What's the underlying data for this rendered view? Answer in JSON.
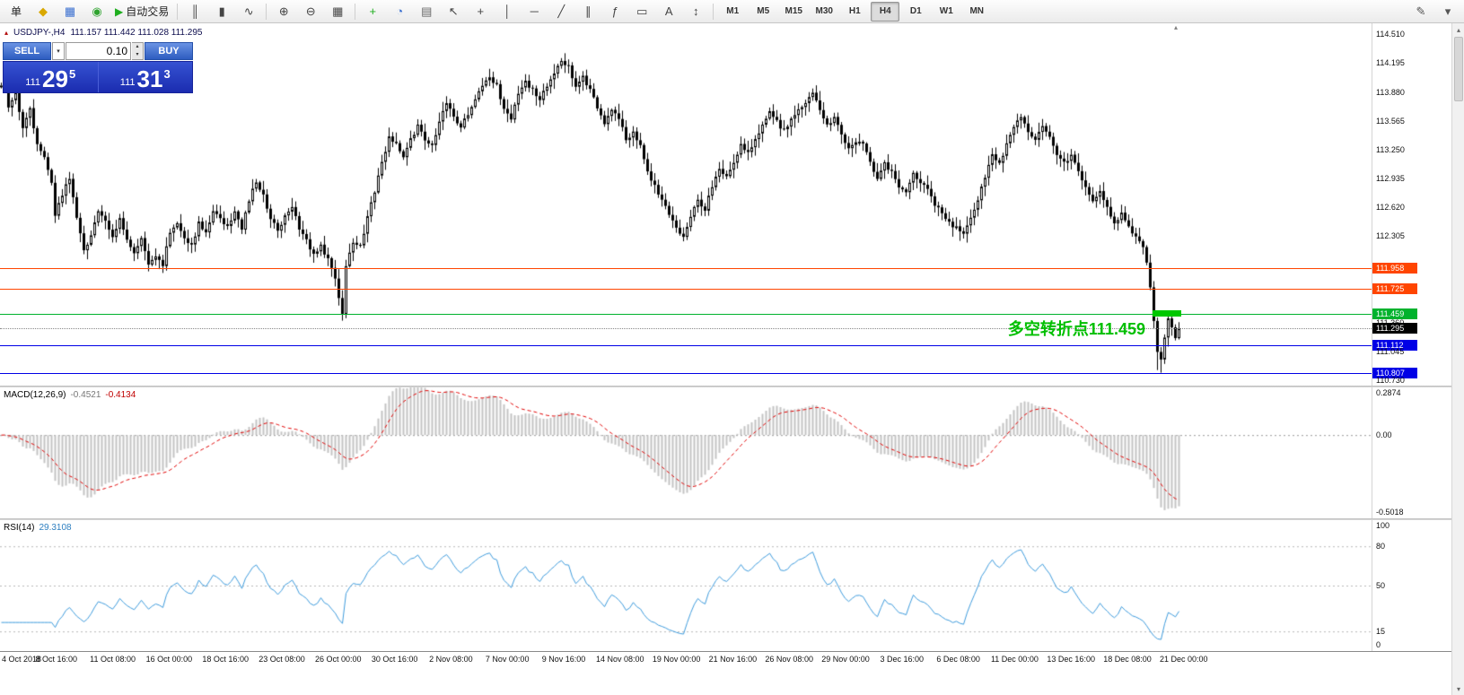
{
  "toolbar": {
    "menu_label": "单",
    "icons_left": [
      {
        "name": "new-order-icon",
        "glyph": "◆",
        "color": "#d9a800"
      },
      {
        "name": "market-watch-icon",
        "glyph": "▦",
        "color": "#3a6fd0"
      },
      {
        "name": "refresh-icon",
        "glyph": "◉",
        "color": "#2fa32f"
      }
    ],
    "autotrading": {
      "label": "自动交易",
      "icon_color": "#1fae1f"
    },
    "chart_type_icons": [
      {
        "name": "bar-chart-icon",
        "glyph": "║",
        "color": "#444"
      },
      {
        "name": "candlestick-icon",
        "glyph": "▮",
        "color": "#444"
      },
      {
        "name": "line-chart-icon",
        "glyph": "∿",
        "color": "#444"
      }
    ],
    "zoom_icons": [
      {
        "name": "zoom-in-icon",
        "glyph": "⊕",
        "color": "#444"
      },
      {
        "name": "zoom-out-icon",
        "glyph": "⊖",
        "color": "#444"
      },
      {
        "name": "grid-icon",
        "glyph": "▦",
        "color": "#444"
      }
    ],
    "tool_icons": [
      {
        "name": "indicators-add-icon",
        "glyph": "+",
        "color": "#1fae1f"
      },
      {
        "name": "period-icon",
        "glyph": "◔",
        "color": "#3a6fd0"
      },
      {
        "name": "template-icon",
        "glyph": "▤",
        "color": "#666"
      },
      {
        "name": "cursor-icon",
        "glyph": "↖",
        "color": "#444"
      },
      {
        "name": "crosshair-icon",
        "glyph": "+",
        "color": "#444"
      },
      {
        "name": "vline-icon",
        "glyph": "│",
        "color": "#444"
      },
      {
        "name": "hline-icon",
        "glyph": "─",
        "color": "#444"
      },
      {
        "name": "trendline-icon",
        "glyph": "╱",
        "color": "#444"
      },
      {
        "name": "channel-icon",
        "glyph": "∥",
        "color": "#444"
      },
      {
        "name": "fibonacci-icon",
        "glyph": "ƒ",
        "color": "#444"
      },
      {
        "name": "shapes-icon",
        "glyph": "▭",
        "color": "#444"
      },
      {
        "name": "text-icon",
        "glyph": "A",
        "color": "#444"
      },
      {
        "name": "arrows-icon",
        "glyph": "↕",
        "color": "#444"
      }
    ],
    "timeframes": [
      "M1",
      "M5",
      "M15",
      "M30",
      "H1",
      "H4",
      "D1",
      "W1",
      "MN"
    ],
    "active_timeframe": "H4",
    "right_icons": [
      {
        "name": "edit-icon",
        "glyph": "✎",
        "color": "#555"
      },
      {
        "name": "collapse-icon",
        "glyph": "▾",
        "color": "#555"
      }
    ]
  },
  "symbol_header": {
    "marker": "▴",
    "symbol": "USDJPY-,H4",
    "ohlc": "111.157 111.442 111.028 111.295"
  },
  "trade_panel": {
    "sell_label": "SELL",
    "buy_label": "BUY",
    "volume": "0.10",
    "sell_price_major": "111",
    "sell_price_big": "29",
    "sell_price_sup": "5",
    "buy_price_major": "111",
    "buy_price_big": "31",
    "buy_price_sup": "3"
  },
  "annotation": {
    "text": "多空转折点111.459",
    "color": "#00bf00"
  },
  "levels": [
    {
      "price": 111.958,
      "label": "111.958",
      "color": "#ff4500"
    },
    {
      "price": 111.725,
      "label": "111.725",
      "color": "#ff4500"
    },
    {
      "price": 111.459,
      "label": "111.459",
      "color": "#00b22d"
    },
    {
      "price": 111.112,
      "label": "111.112",
      "color": "#0000e6"
    },
    {
      "price": 110.807,
      "label": "110.807",
      "color": "#0000e6"
    }
  ],
  "current_price": {
    "value": 111.295,
    "label": "111.295",
    "color": "#000000"
  },
  "price_axis_ticks": [
    "114.510",
    "114.195",
    "113.880",
    "113.565",
    "113.250",
    "112.935",
    "112.620",
    "112.305",
    "111.360",
    "111.045",
    "110.730"
  ],
  "macd_pane": {
    "name": "MACD(12,26,9)",
    "value1": "-0.4521",
    "value2": "-0.4134",
    "axis_top": "0.2874",
    "axis_zero": "0.00",
    "axis_bottom": "-0.5018"
  },
  "rsi_pane": {
    "name": "RSI(14)",
    "value": "29.3108",
    "axis": [
      "100",
      "80",
      "50",
      "15",
      "0"
    ],
    "levels": [
      80,
      50,
      15
    ]
  },
  "time_axis": [
    "4 Oct 2018",
    "8 Oct 16:00",
    "11 Oct 08:00",
    "16 Oct 00:00",
    "18 Oct 16:00",
    "23 Oct 08:00",
    "26 Oct 00:00",
    "30 Oct 16:00",
    "2 Nov 08:00",
    "7 Nov 00:00",
    "9 Nov 16:00",
    "14 Nov 08:00",
    "19 Nov 00:00",
    "21 Nov 16:00",
    "26 Nov 08:00",
    "29 Nov 00:00",
    "3 Dec 16:00",
    "6 Dec 08:00",
    "11 Dec 00:00",
    "13 Dec 16:00",
    "18 Dec 08:00",
    "21 Dec 00:00"
  ],
  "highlight_box": {
    "start_index": 321,
    "end_index": 328,
    "price": 111.459,
    "color": "#00c800",
    "height": 7
  },
  "chart_marker": {
    "index": 327,
    "glyph": "▴"
  },
  "chart_data": {
    "type": "candlestick",
    "symbol": "USDJPY",
    "timeframe": "H4",
    "price_range": [
      110.67,
      114.63
    ],
    "n_candles": 329,
    "last_close": 111.295,
    "close_waypoints": [
      [
        0,
        113.95
      ],
      [
        1,
        114.0
      ],
      [
        2,
        113.7
      ],
      [
        4,
        113.85
      ],
      [
        6,
        113.5
      ],
      [
        8,
        113.7
      ],
      [
        10,
        113.3
      ],
      [
        12,
        113.15
      ],
      [
        14,
        112.9
      ],
      [
        15,
        112.55
      ],
      [
        17,
        112.75
      ],
      [
        19,
        112.95
      ],
      [
        21,
        112.5
      ],
      [
        23,
        112.15
      ],
      [
        25,
        112.3
      ],
      [
        27,
        112.6
      ],
      [
        29,
        112.45
      ],
      [
        31,
        112.3
      ],
      [
        33,
        112.5
      ],
      [
        35,
        112.25
      ],
      [
        37,
        112.1
      ],
      [
        39,
        112.3
      ],
      [
        41,
        111.97
      ],
      [
        43,
        112.1
      ],
      [
        45,
        112.0
      ],
      [
        47,
        112.35
      ],
      [
        49,
        112.45
      ],
      [
        51,
        112.3
      ],
      [
        53,
        112.2
      ],
      [
        55,
        112.45
      ],
      [
        57,
        112.35
      ],
      [
        59,
        112.6
      ],
      [
        61,
        112.5
      ],
      [
        63,
        112.4
      ],
      [
        65,
        112.55
      ],
      [
        67,
        112.4
      ],
      [
        69,
        112.7
      ],
      [
        71,
        112.9
      ],
      [
        73,
        112.75
      ],
      [
        75,
        112.5
      ],
      [
        77,
        112.35
      ],
      [
        79,
        112.55
      ],
      [
        81,
        112.6
      ],
      [
        83,
        112.4
      ],
      [
        85,
        112.25
      ],
      [
        87,
        112.1
      ],
      [
        89,
        112.2
      ],
      [
        91,
        112.05
      ],
      [
        93,
        111.85
      ],
      [
        95,
        111.45
      ],
      [
        96,
        112.0
      ],
      [
        98,
        112.25
      ],
      [
        100,
        112.2
      ],
      [
        102,
        112.5
      ],
      [
        104,
        112.8
      ],
      [
        106,
        113.1
      ],
      [
        108,
        113.4
      ],
      [
        110,
        113.3
      ],
      [
        112,
        113.15
      ],
      [
        114,
        113.35
      ],
      [
        116,
        113.5
      ],
      [
        118,
        113.35
      ],
      [
        120,
        113.3
      ],
      [
        122,
        113.55
      ],
      [
        124,
        113.75
      ],
      [
        126,
        113.6
      ],
      [
        128,
        113.5
      ],
      [
        130,
        113.65
      ],
      [
        132,
        113.8
      ],
      [
        134,
        113.95
      ],
      [
        136,
        114.05
      ],
      [
        138,
        113.95
      ],
      [
        140,
        113.7
      ],
      [
        142,
        113.6
      ],
      [
        144,
        113.85
      ],
      [
        146,
        114.0
      ],
      [
        148,
        113.9
      ],
      [
        150,
        113.8
      ],
      [
        152,
        113.95
      ],
      [
        154,
        114.1
      ],
      [
        156,
        114.2
      ],
      [
        158,
        114.15
      ],
      [
        160,
        113.95
      ],
      [
        162,
        114.05
      ],
      [
        164,
        113.9
      ],
      [
        166,
        113.7
      ],
      [
        168,
        113.55
      ],
      [
        170,
        113.7
      ],
      [
        172,
        113.6
      ],
      [
        174,
        113.35
      ],
      [
        176,
        113.45
      ],
      [
        178,
        113.3
      ],
      [
        180,
        113.0
      ],
      [
        182,
        112.85
      ],
      [
        184,
        112.7
      ],
      [
        186,
        112.55
      ],
      [
        188,
        112.4
      ],
      [
        190,
        112.3
      ],
      [
        192,
        112.5
      ],
      [
        194,
        112.7
      ],
      [
        196,
        112.6
      ],
      [
        198,
        112.85
      ],
      [
        200,
        113.05
      ],
      [
        202,
        112.95
      ],
      [
        204,
        113.1
      ],
      [
        206,
        113.3
      ],
      [
        208,
        113.2
      ],
      [
        210,
        113.35
      ],
      [
        212,
        113.5
      ],
      [
        214,
        113.65
      ],
      [
        216,
        113.55
      ],
      [
        218,
        113.45
      ],
      [
        220,
        113.6
      ],
      [
        222,
        113.7
      ],
      [
        224,
        113.75
      ],
      [
        226,
        113.85
      ],
      [
        228,
        113.7
      ],
      [
        230,
        113.5
      ],
      [
        232,
        113.6
      ],
      [
        234,
        113.4
      ],
      [
        236,
        113.25
      ],
      [
        238,
        113.35
      ],
      [
        240,
        113.3
      ],
      [
        242,
        113.1
      ],
      [
        244,
        112.95
      ],
      [
        246,
        113.1
      ],
      [
        248,
        113.0
      ],
      [
        250,
        112.85
      ],
      [
        252,
        112.8
      ],
      [
        254,
        113.0
      ],
      [
        256,
        112.9
      ],
      [
        258,
        112.8
      ],
      [
        260,
        112.65
      ],
      [
        262,
        112.55
      ],
      [
        264,
        112.45
      ],
      [
        266,
        112.4
      ],
      [
        268,
        112.35
      ],
      [
        270,
        112.5
      ],
      [
        272,
        112.7
      ],
      [
        274,
        112.95
      ],
      [
        276,
        113.2
      ],
      [
        278,
        113.1
      ],
      [
        280,
        113.3
      ],
      [
        282,
        113.5
      ],
      [
        284,
        113.6
      ],
      [
        286,
        113.45
      ],
      [
        288,
        113.35
      ],
      [
        290,
        113.5
      ],
      [
        292,
        113.4
      ],
      [
        294,
        113.2
      ],
      [
        296,
        113.1
      ],
      [
        298,
        113.2
      ],
      [
        300,
        113.0
      ],
      [
        302,
        112.85
      ],
      [
        304,
        112.7
      ],
      [
        306,
        112.8
      ],
      [
        308,
        112.6
      ],
      [
        310,
        112.45
      ],
      [
        312,
        112.55
      ],
      [
        314,
        112.4
      ],
      [
        316,
        112.3
      ],
      [
        318,
        112.2
      ],
      [
        319,
        112.0
      ],
      [
        320,
        111.75
      ],
      [
        321,
        111.4
      ],
      [
        322,
        111.05
      ],
      [
        323,
        110.95
      ],
      [
        324,
        111.2
      ],
      [
        325,
        111.4
      ],
      [
        326,
        111.3
      ],
      [
        327,
        111.2
      ],
      [
        328,
        111.295
      ]
    ],
    "forced_lows": [
      [
        95,
        111.38
      ],
      [
        322,
        110.84
      ],
      [
        323,
        110.81
      ]
    ],
    "forced_highs": [
      [
        156,
        114.25
      ]
    ],
    "horizontal_levels": [
      111.958,
      111.725,
      111.459,
      111.112,
      110.807
    ],
    "indicators": [
      {
        "type": "MACD",
        "params": [
          12,
          26,
          9
        ],
        "last_values": [
          -0.4521,
          -0.4134
        ],
        "range": [
          -0.5018,
          0.2874
        ]
      },
      {
        "type": "RSI",
        "params": [
          14
        ],
        "last_value": 29.3108,
        "range": [
          0,
          100
        ],
        "levels": [
          80,
          50,
          15
        ]
      }
    ]
  }
}
